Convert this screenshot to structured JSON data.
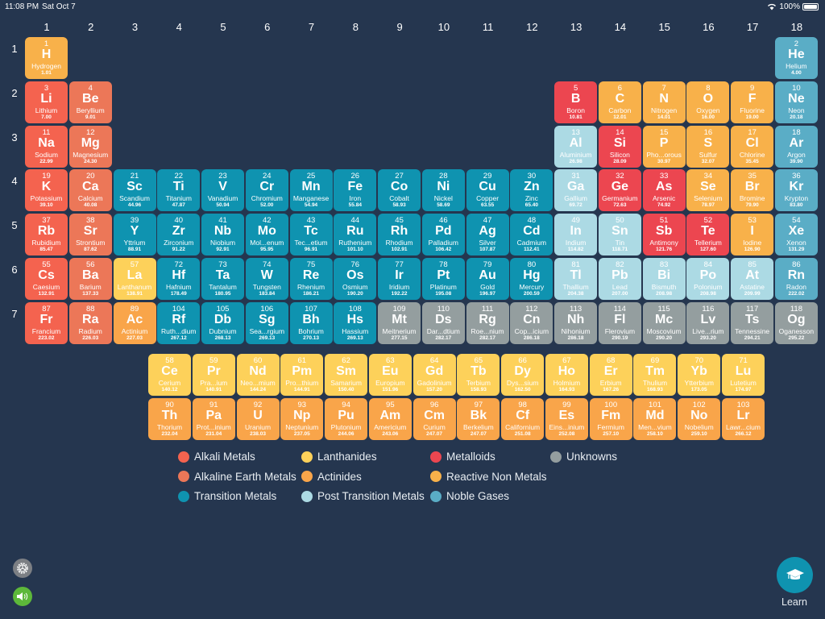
{
  "status_bar": {
    "time": "11:08 PM",
    "date": "Sat Oct 7",
    "battery": "100%"
  },
  "groups": [
    "1",
    "2",
    "3",
    "4",
    "5",
    "6",
    "7",
    "8",
    "9",
    "10",
    "11",
    "12",
    "13",
    "14",
    "15",
    "16",
    "17",
    "18"
  ],
  "periods": [
    "1",
    "2",
    "3",
    "4",
    "5",
    "6",
    "7"
  ],
  "colors": {
    "background": "#25364f",
    "alkali": "#f4634f",
    "alkaline": "#ec7758",
    "transition": "#0f93b0",
    "lanthanide": "#fdd15a",
    "actinide": "#f9a54a",
    "metalloid": "#ec4650",
    "reactive": "#f8b14a",
    "post": "#acdae4",
    "noble": "#5aadc6",
    "unknown": "#949e9f"
  },
  "elements": [
    [
      "1",
      "H",
      "Hydrogen",
      "1.01",
      "reactive",
      1,
      1
    ],
    [
      "2",
      "He",
      "Helium",
      "4.00",
      "noble",
      1,
      18
    ],
    [
      "3",
      "Li",
      "Lithium",
      "7.00",
      "alkali",
      2,
      1
    ],
    [
      "4",
      "Be",
      "Beryllium",
      "9.01",
      "alkaline",
      2,
      2
    ],
    [
      "5",
      "B",
      "Boron",
      "10.81",
      "metalloid",
      2,
      13
    ],
    [
      "6",
      "C",
      "Carbon",
      "12.01",
      "reactive",
      2,
      14
    ],
    [
      "7",
      "N",
      "Nitrogen",
      "14.01",
      "reactive",
      2,
      15
    ],
    [
      "8",
      "O",
      "Oxygen",
      "16.00",
      "reactive",
      2,
      16
    ],
    [
      "9",
      "F",
      "Fluorine",
      "19.00",
      "reactive",
      2,
      17
    ],
    [
      "10",
      "Ne",
      "Neon",
      "20.18",
      "noble",
      2,
      18
    ],
    [
      "11",
      "Na",
      "Sodium",
      "22.99",
      "alkali",
      3,
      1
    ],
    [
      "12",
      "Mg",
      "Magnesium",
      "24.30",
      "alkaline",
      3,
      2
    ],
    [
      "13",
      "Al",
      "Aluminium",
      "26.98",
      "post",
      3,
      13
    ],
    [
      "14",
      "Si",
      "Silicon",
      "28.09",
      "metalloid",
      3,
      14
    ],
    [
      "15",
      "P",
      "Pho...orous",
      "30.97",
      "reactive",
      3,
      15
    ],
    [
      "16",
      "S",
      "Sulfur",
      "32.07",
      "reactive",
      3,
      16
    ],
    [
      "17",
      "Cl",
      "Chlorine",
      "35.45",
      "reactive",
      3,
      17
    ],
    [
      "18",
      "Ar",
      "Argon",
      "39.90",
      "noble",
      3,
      18
    ],
    [
      "19",
      "K",
      "Potassium",
      "39.10",
      "alkali",
      4,
      1
    ],
    [
      "20",
      "Ca",
      "Calcium",
      "40.08",
      "alkaline",
      4,
      2
    ],
    [
      "21",
      "Sc",
      "Scandium",
      "44.96",
      "transition",
      4,
      3
    ],
    [
      "22",
      "Ti",
      "Titanium",
      "47.87",
      "transition",
      4,
      4
    ],
    [
      "23",
      "V",
      "Vanadium",
      "50.94",
      "transition",
      4,
      5
    ],
    [
      "24",
      "Cr",
      "Chromium",
      "52.00",
      "transition",
      4,
      6
    ],
    [
      "25",
      "Mn",
      "Manganese",
      "54.94",
      "transition",
      4,
      7
    ],
    [
      "26",
      "Fe",
      "Iron",
      "55.84",
      "transition",
      4,
      8
    ],
    [
      "27",
      "Co",
      "Cobalt",
      "58.93",
      "transition",
      4,
      9
    ],
    [
      "28",
      "Ni",
      "Nickel",
      "58.69",
      "transition",
      4,
      10
    ],
    [
      "29",
      "Cu",
      "Copper",
      "63.55",
      "transition",
      4,
      11
    ],
    [
      "30",
      "Zn",
      "Zinc",
      "65.40",
      "transition",
      4,
      12
    ],
    [
      "31",
      "Ga",
      "Gallium",
      "69.72",
      "post",
      4,
      13
    ],
    [
      "32",
      "Ge",
      "Germanium",
      "72.63",
      "metalloid",
      4,
      14
    ],
    [
      "33",
      "As",
      "Arsenic",
      "74.92",
      "metalloid",
      4,
      15
    ],
    [
      "34",
      "Se",
      "Selenium",
      "78.97",
      "reactive",
      4,
      16
    ],
    [
      "35",
      "Br",
      "Bromine",
      "79.90",
      "reactive",
      4,
      17
    ],
    [
      "36",
      "Kr",
      "Krypton",
      "83.80",
      "noble",
      4,
      18
    ],
    [
      "37",
      "Rb",
      "Rubidium",
      "85.47",
      "alkali",
      5,
      1
    ],
    [
      "38",
      "Sr",
      "Strontium",
      "87.62",
      "alkaline",
      5,
      2
    ],
    [
      "39",
      "Y",
      "Yttrium",
      "88.91",
      "transition",
      5,
      3
    ],
    [
      "40",
      "Zr",
      "Zirconium",
      "91.22",
      "transition",
      5,
      4
    ],
    [
      "41",
      "Nb",
      "Niobium",
      "92.91",
      "transition",
      5,
      5
    ],
    [
      "42",
      "Mo",
      "Mol...enum",
      "95.95",
      "transition",
      5,
      6
    ],
    [
      "43",
      "Tc",
      "Tec...etium",
      "96.91",
      "transition",
      5,
      7
    ],
    [
      "44",
      "Ru",
      "Ruthenium",
      "101.10",
      "transition",
      5,
      8
    ],
    [
      "45",
      "Rh",
      "Rhodium",
      "102.91",
      "transition",
      5,
      9
    ],
    [
      "46",
      "Pd",
      "Palladium",
      "106.42",
      "transition",
      5,
      10
    ],
    [
      "47",
      "Ag",
      "Silver",
      "107.87",
      "transition",
      5,
      11
    ],
    [
      "48",
      "Cd",
      "Cadmium",
      "112.41",
      "transition",
      5,
      12
    ],
    [
      "49",
      "In",
      "Indium",
      "114.82",
      "post",
      5,
      13
    ],
    [
      "50",
      "Sn",
      "Tin",
      "118.71",
      "post",
      5,
      14
    ],
    [
      "51",
      "Sb",
      "Antimony",
      "121.76",
      "metalloid",
      5,
      15
    ],
    [
      "52",
      "Te",
      "Tellerium",
      "127.60",
      "metalloid",
      5,
      16
    ],
    [
      "53",
      "I",
      "Iodine",
      "126.90",
      "reactive",
      5,
      17
    ],
    [
      "54",
      "Xe",
      "Xenon",
      "131.29",
      "noble",
      5,
      18
    ],
    [
      "55",
      "Cs",
      "Caesium",
      "132.91",
      "alkali",
      6,
      1
    ],
    [
      "56",
      "Ba",
      "Barium",
      "137.33",
      "alkaline",
      6,
      2
    ],
    [
      "57",
      "La",
      "Lanthanum",
      "138.91",
      "lanthanide",
      6,
      3
    ],
    [
      "72",
      "Hf",
      "Hafnium",
      "178.49",
      "transition",
      6,
      4
    ],
    [
      "73",
      "Ta",
      "Tantalum",
      "180.95",
      "transition",
      6,
      5
    ],
    [
      "74",
      "W",
      "Tungsten",
      "183.84",
      "transition",
      6,
      6
    ],
    [
      "75",
      "Re",
      "Rhenium",
      "186.21",
      "transition",
      6,
      7
    ],
    [
      "76",
      "Os",
      "Osmium",
      "190.20",
      "transition",
      6,
      8
    ],
    [
      "77",
      "Ir",
      "Iridium",
      "192.22",
      "transition",
      6,
      9
    ],
    [
      "78",
      "Pt",
      "Platinum",
      "195.08",
      "transition",
      6,
      10
    ],
    [
      "79",
      "Au",
      "Gold",
      "196.97",
      "transition",
      6,
      11
    ],
    [
      "80",
      "Hg",
      "Mercury",
      "200.59",
      "transition",
      6,
      12
    ],
    [
      "81",
      "Tl",
      "Thallium",
      "204.38",
      "post",
      6,
      13
    ],
    [
      "82",
      "Pb",
      "Lead",
      "207.00",
      "post",
      6,
      14
    ],
    [
      "83",
      "Bi",
      "Bismuth",
      "208.98",
      "post",
      6,
      15
    ],
    [
      "84",
      "Po",
      "Polonium",
      "208.98",
      "post",
      6,
      16
    ],
    [
      "85",
      "At",
      "Astatine",
      "209.99",
      "post",
      6,
      17
    ],
    [
      "86",
      "Rn",
      "Radon",
      "222.02",
      "noble",
      6,
      18
    ],
    [
      "87",
      "Fr",
      "Francium",
      "223.02",
      "alkali",
      7,
      1
    ],
    [
      "88",
      "Ra",
      "Radium",
      "226.03",
      "alkaline",
      7,
      2
    ],
    [
      "89",
      "Ac",
      "Actinium",
      "227.03",
      "actinide",
      7,
      3
    ],
    [
      "104",
      "Rf",
      "Ruth...dium",
      "267.12",
      "transition",
      7,
      4
    ],
    [
      "105",
      "Db",
      "Dubnium",
      "268.13",
      "transition",
      7,
      5
    ],
    [
      "106",
      "Sg",
      "Sea...rgium",
      "269.13",
      "transition",
      7,
      6
    ],
    [
      "107",
      "Bh",
      "Bohrium",
      "270.13",
      "transition",
      7,
      7
    ],
    [
      "108",
      "Hs",
      "Hassium",
      "269.13",
      "transition",
      7,
      8
    ],
    [
      "109",
      "Mt",
      "Meitnerium",
      "277.15",
      "unknown",
      7,
      9
    ],
    [
      "110",
      "Ds",
      "Dar...dtium",
      "282.17",
      "unknown",
      7,
      10
    ],
    [
      "111",
      "Rg",
      "Roe...nium",
      "282.17",
      "unknown",
      7,
      11
    ],
    [
      "112",
      "Cn",
      "Cop...icium",
      "286.18",
      "unknown",
      7,
      12
    ],
    [
      "113",
      "Nh",
      "Nihonium",
      "286.18",
      "unknown",
      7,
      13
    ],
    [
      "114",
      "Fl",
      "Flerovium",
      "290.19",
      "unknown",
      7,
      14
    ],
    [
      "115",
      "Mc",
      "Moscovium",
      "290.20",
      "unknown",
      7,
      15
    ],
    [
      "116",
      "Lv",
      "Live...rium",
      "293.20",
      "unknown",
      7,
      16
    ],
    [
      "117",
      "Ts",
      "Tennessine",
      "294.21",
      "unknown",
      7,
      17
    ],
    [
      "118",
      "Og",
      "Oganesson",
      "295.22",
      "unknown",
      7,
      18
    ]
  ],
  "lanthanides": [
    [
      "58",
      "Ce",
      "Cerium",
      "140.12"
    ],
    [
      "59",
      "Pr",
      "Pra...ium",
      "140.91"
    ],
    [
      "60",
      "Nd",
      "Neo...mium",
      "144.24"
    ],
    [
      "61",
      "Pm",
      "Pro...thium",
      "144.91"
    ],
    [
      "62",
      "Sm",
      "Samarium",
      "150.40"
    ],
    [
      "63",
      "Eu",
      "Europium",
      "151.96"
    ],
    [
      "64",
      "Gd",
      "Gadolinium",
      "157.20"
    ],
    [
      "65",
      "Tb",
      "Terbium",
      "158.93"
    ],
    [
      "66",
      "Dy",
      "Dys...sium",
      "162.50"
    ],
    [
      "67",
      "Ho",
      "Holmium",
      "164.93"
    ],
    [
      "68",
      "Er",
      "Erbium",
      "167.26"
    ],
    [
      "69",
      "Tm",
      "Thulium",
      "168.93"
    ],
    [
      "70",
      "Yb",
      "Ytterbium",
      "173.05"
    ],
    [
      "71",
      "Lu",
      "Lutetium",
      "174.97"
    ]
  ],
  "actinides": [
    [
      "90",
      "Th",
      "Thorium",
      "232.04"
    ],
    [
      "91",
      "Pa",
      "Prot...inium",
      "231.04"
    ],
    [
      "92",
      "U",
      "Uranium",
      "238.03"
    ],
    [
      "93",
      "Np",
      "Neptunium",
      "237.05"
    ],
    [
      "94",
      "Pu",
      "Plutonium",
      "244.06"
    ],
    [
      "95",
      "Am",
      "Americium",
      "243.06"
    ],
    [
      "96",
      "Cm",
      "Curium",
      "247.07"
    ],
    [
      "97",
      "Bk",
      "Berkelium",
      "247.07"
    ],
    [
      "98",
      "Cf",
      "Californium",
      "251.08"
    ],
    [
      "99",
      "Es",
      "Eins...inium",
      "252.08"
    ],
    [
      "100",
      "Fm",
      "Fermium",
      "257.10"
    ],
    [
      "101",
      "Md",
      "Men...vium",
      "258.10"
    ],
    [
      "102",
      "No",
      "Nobelium",
      "259.10"
    ],
    [
      "103",
      "Lr",
      "Lawr...cium",
      "266.12"
    ]
  ],
  "legend": [
    {
      "label": "Alkali Metals",
      "cat": "alkali"
    },
    {
      "label": "Lanthanides",
      "cat": "lanthanide"
    },
    {
      "label": "Metalloids",
      "cat": "metalloid"
    },
    {
      "label": "Unknowns",
      "cat": "unknown"
    },
    {
      "label": "Alkaline Earth Metals",
      "cat": "alkaline"
    },
    {
      "label": "Actinides",
      "cat": "actinide"
    },
    {
      "label": "Reactive Non Metals",
      "cat": "reactive"
    },
    {
      "label": "Transition Metals",
      "cat": "transition"
    },
    {
      "label": "Post Transition Metals",
      "cat": "post"
    },
    {
      "label": "Noble Gases",
      "cat": "noble"
    }
  ],
  "learn_button": {
    "label": "Learn",
    "icon": "graduation-cap-icon"
  },
  "settings_button": {
    "icon": "gear-icon"
  },
  "sound_button": {
    "icon": "speaker-icon"
  }
}
